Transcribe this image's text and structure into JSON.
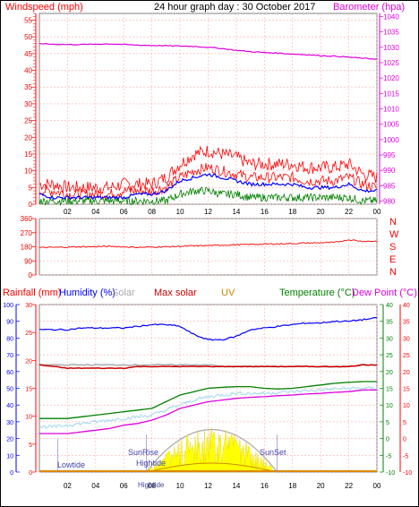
{
  "title": "24 hour graph day : 30 October 2017",
  "x_ticks": [
    "02",
    "04",
    "06",
    "08",
    "10",
    "12",
    "14",
    "16",
    "18",
    "20",
    "22",
    "00"
  ],
  "colors": {
    "windspeed": "#ff0000",
    "gust": "#ff0000",
    "avg_wind": "#0000ff",
    "wind_green": "#008000",
    "barometer": "#dd00dd",
    "direction": "#ff0000",
    "humidity": "#0000ff",
    "solar": "#aaaaaa",
    "max_solar": "#cc0000",
    "uv": "#cc8800",
    "temperature": "#008000",
    "dewpoint": "#dd00dd",
    "light_temp": "#aaddee",
    "axis_green": "#008000",
    "axis_blue": "#0000ff",
    "axis_red": "#ff0000",
    "grid": "#ffaaaa",
    "yellow": "#ffff00"
  },
  "chart_data": [
    {
      "type": "line",
      "name": "wind-baro",
      "ylabel_left": "Windspeed (mph)",
      "ylabel_right": "Barometer (hpa)",
      "left_ticks": [
        0,
        5,
        10,
        15,
        20,
        25,
        30,
        35,
        40,
        45,
        50,
        55
      ],
      "left_range": [
        0,
        57
      ],
      "right_ticks": [
        980,
        985,
        990,
        995,
        1000,
        1005,
        1010,
        1015,
        1020,
        1025,
        1030,
        1035,
        1040
      ],
      "right_range": [
        979,
        1041
      ],
      "x_hours": [
        0,
        1,
        2,
        3,
        4,
        5,
        6,
        7,
        8,
        9,
        10,
        11,
        12,
        13,
        14,
        15,
        16,
        17,
        18,
        19,
        20,
        21,
        22,
        23,
        24
      ],
      "gust": [
        6,
        6,
        5,
        5,
        5,
        5,
        6,
        6,
        6,
        8,
        12,
        15,
        16,
        15,
        14,
        12,
        12,
        12,
        12,
        11,
        11,
        11,
        12,
        9,
        8
      ],
      "windspeed": [
        4,
        4,
        3,
        3,
        3,
        3,
        4,
        4,
        4,
        5,
        8,
        10,
        11,
        10,
        9,
        8,
        8,
        8,
        8,
        7,
        7,
        7,
        8,
        6,
        5
      ],
      "avg_wind": [
        3,
        2,
        2,
        2,
        2,
        2,
        2,
        3,
        3,
        4,
        7,
        8,
        9,
        8,
        7,
        6,
        6,
        6,
        6,
        5,
        5,
        5,
        6,
        4,
        4
      ],
      "wind_green": [
        1,
        1,
        1,
        1,
        1,
        1,
        1,
        1,
        1,
        1,
        3,
        4,
        4,
        3,
        3,
        2,
        2,
        2,
        2,
        2,
        2,
        2,
        2,
        1,
        1
      ],
      "barometer": [
        1031.2,
        1031.0,
        1030.9,
        1030.9,
        1031.0,
        1031.1,
        1030.9,
        1030.7,
        1030.6,
        1030.5,
        1030.4,
        1030.3,
        1030.0,
        1029.6,
        1029.0,
        1028.6,
        1028.3,
        1028.1,
        1027.8,
        1027.6,
        1027.3,
        1027.1,
        1026.8,
        1026.4,
        1026.2
      ]
    },
    {
      "type": "line",
      "name": "wind-direction",
      "left_ticks": [
        0,
        90,
        180,
        270,
        360
      ],
      "left_range": [
        0,
        360
      ],
      "right_labels": [
        "N",
        "W",
        "S",
        "E",
        "N"
      ],
      "x_hours": [
        0,
        1,
        2,
        3,
        4,
        5,
        6,
        7,
        8,
        9,
        10,
        11,
        12,
        13,
        14,
        15,
        16,
        17,
        18,
        19,
        20,
        21,
        22,
        23,
        24
      ],
      "direction": [
        175,
        176,
        178,
        180,
        181,
        183,
        180,
        176,
        178,
        180,
        183,
        186,
        188,
        191,
        193,
        195,
        197,
        199,
        201,
        204,
        206,
        208,
        225,
        215,
        216
      ]
    },
    {
      "type": "line",
      "name": "rain-humidity-temperature",
      "legend": [
        "Rainfall (mm)",
        "Humidity (%)",
        "Solar",
        "Max solar",
        "UV",
        "Temperature (°C)",
        "Dew Point (°C)"
      ],
      "rain_ticks": [
        0,
        5,
        10,
        15,
        20,
        25,
        30
      ],
      "rain_range": [
        0,
        30
      ],
      "hum_ticks": [
        0,
        10,
        20,
        30,
        40,
        50,
        60,
        70,
        80,
        90,
        100
      ],
      "hum_range": [
        0,
        100
      ],
      "temp_ticks": [
        -10,
        -5,
        0,
        5,
        10,
        15,
        20,
        25,
        30,
        35,
        40
      ],
      "temp_range": [
        -10,
        40
      ],
      "x_hours": [
        0,
        1,
        2,
        3,
        4,
        5,
        6,
        7,
        8,
        9,
        10,
        11,
        12,
        13,
        14,
        15,
        16,
        17,
        18,
        19,
        20,
        21,
        22,
        23,
        24
      ],
      "humidity": [
        85,
        85,
        85,
        86,
        86,
        86,
        86,
        87,
        88,
        88,
        87,
        82,
        79,
        79,
        81,
        85,
        86,
        87,
        88,
        89,
        89,
        90,
        90,
        91,
        92
      ],
      "solar_line": [
        64,
        64,
        64,
        64,
        64,
        64,
        64,
        64,
        64,
        64,
        64,
        64,
        64,
        63,
        63,
        63,
        63,
        63,
        63,
        63,
        63,
        63,
        63,
        64,
        64
      ],
      "max_solar_line": [
        64,
        63,
        62,
        62,
        62,
        62,
        62,
        63,
        63,
        63,
        63,
        63,
        63,
        63,
        63,
        63,
        63,
        63,
        63,
        63,
        63,
        63,
        63,
        64,
        64
      ],
      "temperature": [
        6,
        6,
        6,
        6.5,
        7,
        7.5,
        8,
        8.5,
        9,
        11,
        13,
        14,
        15,
        15.3,
        15.5,
        15.5,
        15,
        14.8,
        15,
        15.5,
        16,
        16.5,
        16.8,
        17,
        17
      ],
      "light_temp": [
        3.5,
        3.5,
        4,
        4.5,
        5,
        5.5,
        6,
        6.5,
        7,
        8.5,
        10,
        11.5,
        12.5,
        13,
        13.5,
        13.5,
        13.5,
        13.8,
        14,
        14.3,
        14.5,
        14.8,
        15,
        15,
        15
      ],
      "dewpoint": [
        1.5,
        1.5,
        1.5,
        2,
        2.5,
        3,
        4,
        4.5,
        5.5,
        7,
        9,
        10,
        11,
        11.5,
        12,
        12.3,
        12.5,
        12.8,
        13,
        13.3,
        13.5,
        13.8,
        14,
        14.5,
        14.5
      ],
      "sunrise_hour": 7.6,
      "sunset_hour": 16.9,
      "annotations": {
        "lowtide": "Lowtide",
        "sunrise": "SunRise",
        "hightide": "Hightide",
        "sunset": "SunSet",
        "hightide_x": "Hightide"
      }
    }
  ]
}
